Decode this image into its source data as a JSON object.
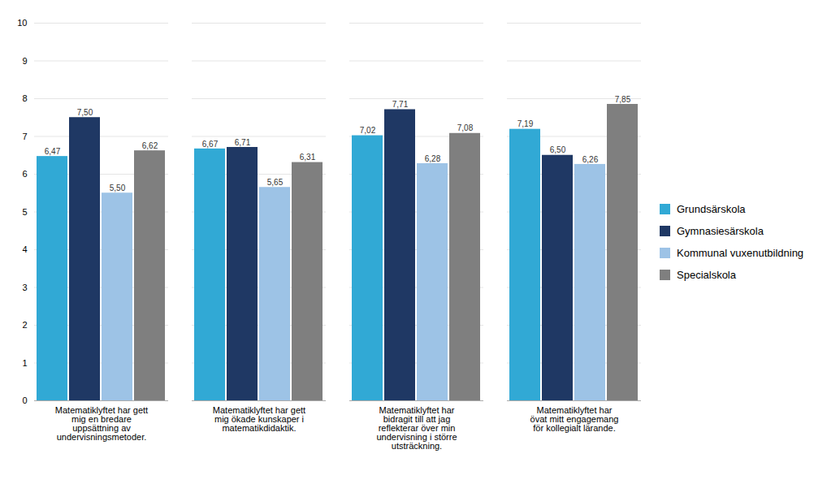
{
  "chart_data": {
    "type": "bar",
    "categories": [
      "Matematiklyftet har gett\nmig en bredare\nuppsättning av\nundervisningsmetoder.",
      "Matematiklyftet har gett\nmig ökade kunskaper i\nmatematikdidaktik.",
      "Matematiklyftet har\nbidragit till att jag\nreflekterar över min\nundervisning i större\nutsträckning.",
      "Matematiklyftet har\növat mitt engagemang\nför kollegialt lärande."
    ],
    "series": [
      {
        "name": "Grundsärskola",
        "color": "#31A9D5",
        "values": [
          6.47,
          6.67,
          7.02,
          7.19
        ],
        "value_labels": [
          "6,47",
          "6,67",
          "7,02",
          "7,19"
        ]
      },
      {
        "name": "Gymnasiesärskola",
        "color": "#1F3864",
        "values": [
          7.5,
          6.71,
          7.71,
          6.5
        ],
        "value_labels": [
          "7,50",
          "6,71",
          "7,71",
          "6,50"
        ]
      },
      {
        "name": "Kommunal vuxenutbildning",
        "color": "#9DC3E6",
        "values": [
          5.5,
          5.65,
          6.28,
          6.26
        ],
        "value_labels": [
          "5,50",
          "5,65",
          "6,28",
          "6,26"
        ]
      },
      {
        "name": "Specialskola",
        "color": "#7F7F7F",
        "values": [
          6.62,
          6.31,
          7.08,
          7.85
        ],
        "value_labels": [
          "6,62",
          "6,31",
          "7,08",
          "7,85"
        ]
      }
    ],
    "ylim": [
      0,
      10
    ],
    "yticks": [
      0,
      1,
      2,
      3,
      4,
      5,
      6,
      7,
      8,
      9,
      10
    ],
    "grid": true,
    "legend": "right",
    "data_labels": true
  }
}
